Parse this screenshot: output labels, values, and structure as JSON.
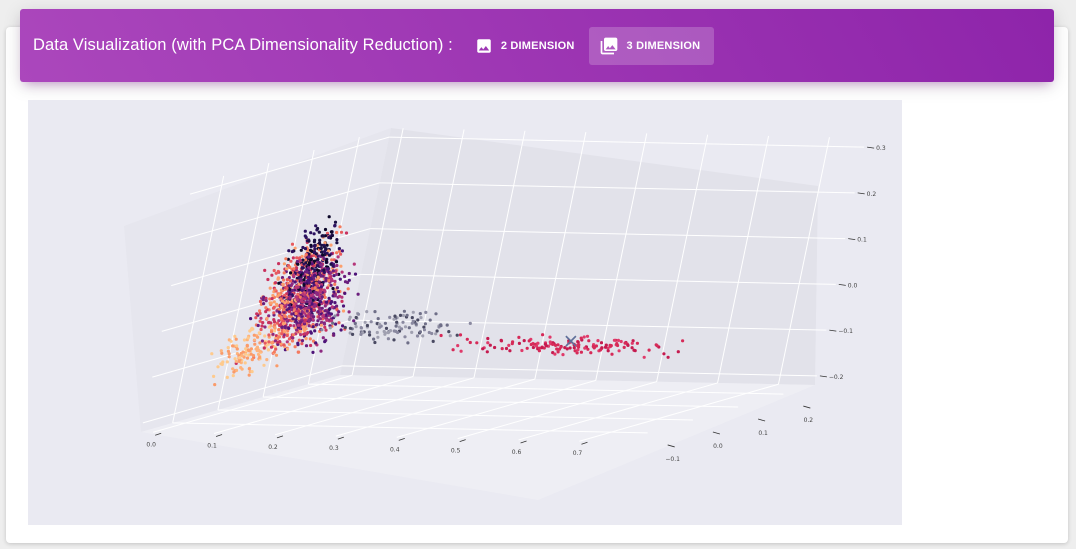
{
  "header": {
    "title": "Data Visualization (with PCA Dimensionality Reduction) :",
    "tabs": [
      {
        "label": "2 DIMENSION",
        "icon": "image-icon",
        "active": false
      },
      {
        "label": "3 DIMENSION",
        "icon": "collections-icon",
        "active": true
      }
    ],
    "accent_start": "#ab47bc",
    "accent_end": "#8e24aa"
  },
  "chart_data": {
    "type": "scatter",
    "projection": "3d",
    "title": "",
    "xlabel": "",
    "ylabel": "",
    "zlabel": "",
    "x_ticks": [
      "0.0",
      "0.1",
      "0.2",
      "0.3",
      "0.4",
      "0.5",
      "0.6",
      "0.7"
    ],
    "y_ticks": [
      "−0.1",
      "0.0",
      "0.1",
      "0.2"
    ],
    "z_ticks": [
      "−0.2",
      "−0.1",
      "0.0",
      "0.1",
      "0.2",
      "0.3"
    ],
    "xlim": [
      -0.02,
      0.76
    ],
    "ylim": [
      -0.17,
      0.27
    ],
    "zlim": [
      -0.22,
      0.32
    ],
    "grid": true,
    "background": "#eaeaf2",
    "colormap": "magma",
    "marker_color": "#5f6f9a",
    "clusters": [
      {
        "count": 560,
        "x": [
          0.0,
          0.11
        ],
        "y": [
          -0.06,
          0.12
        ],
        "z": [
          -0.12,
          0.16
        ],
        "colors": [
          "#fca06e",
          "#f57c5e",
          "#e85a5e",
          "#c9325f"
        ]
      },
      {
        "count": 520,
        "x": [
          0.0,
          0.14
        ],
        "y": [
          -0.04,
          0.1
        ],
        "z": [
          -0.1,
          0.12
        ],
        "colors": [
          "#b5367a",
          "#8c2981",
          "#6b1e7d",
          "#4d1479"
        ]
      },
      {
        "count": 220,
        "x": [
          0.03,
          0.1
        ],
        "y": [
          -0.02,
          0.08
        ],
        "z": [
          -0.02,
          0.2
        ],
        "colors": [
          "#1b1044",
          "#0d0829",
          "#2c115f"
        ]
      },
      {
        "count": 120,
        "x": [
          0.0,
          0.06
        ],
        "y": [
          -0.1,
          0.04
        ],
        "z": [
          -0.14,
          -0.02
        ],
        "colors": [
          "#fdb37d",
          "#feca8d",
          "#fa9b6a"
        ]
      },
      {
        "count": 110,
        "x": [
          0.1,
          0.34
        ],
        "y": [
          -0.02,
          0.08
        ],
        "z": [
          -0.08,
          0.0
        ],
        "colors": [
          "#a0a0b0",
          "#6f6f88",
          "#4a4a62",
          "#8a89a0"
        ]
      },
      {
        "count": 140,
        "x": [
          0.3,
          0.74
        ],
        "y": [
          -0.02,
          0.06
        ],
        "z": [
          -0.09,
          -0.05
        ],
        "colors": [
          "#d62a58",
          "#c51b4f",
          "#e03a6a"
        ]
      }
    ],
    "marker": {
      "symbol": "x",
      "x": 0.52,
      "y": 0.02,
      "z": -0.06
    }
  }
}
